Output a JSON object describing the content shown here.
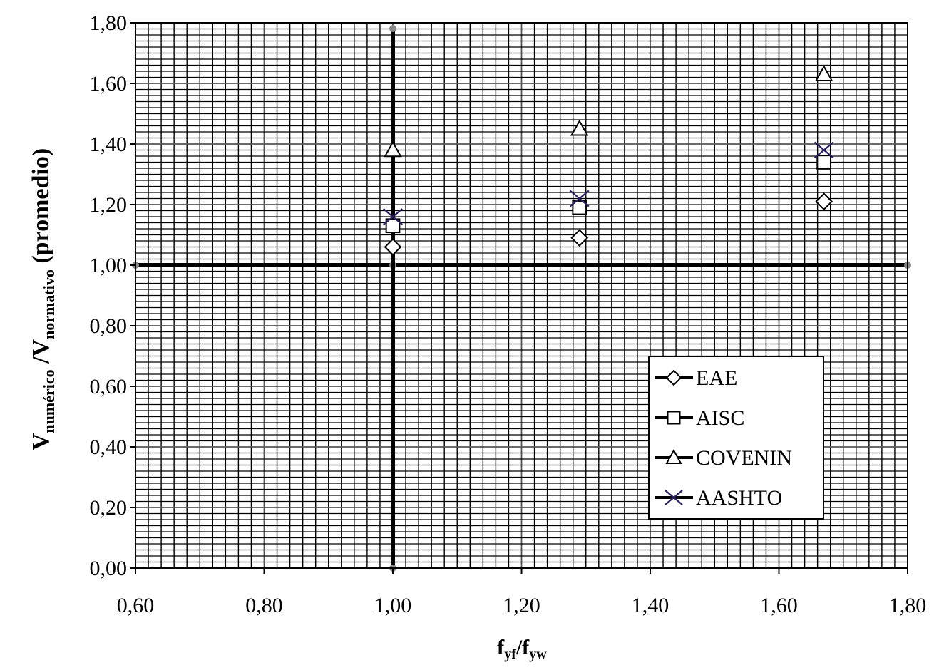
{
  "chart_data": {
    "type": "scatter",
    "xlabel_main": "f",
    "xlabel_sub1": "yf",
    "xlabel_sep": "/f",
    "xlabel_sub2": "yw",
    "ylabel_v1": "V",
    "ylabel_sub1": "numérico",
    "ylabel_sep": " /V",
    "ylabel_sub2": "normativo",
    "ylabel_tail": " (promedio)",
    "xlim": [
      0.6,
      1.8
    ],
    "ylim": [
      0.0,
      1.8
    ],
    "x_ticks": [
      0.6,
      0.8,
      1.0,
      1.2,
      1.4,
      1.6,
      1.8
    ],
    "x_tick_labels": [
      "0,60",
      "0,80",
      "1,00",
      "1,20",
      "1,40",
      "1,60",
      "1,80"
    ],
    "y_ticks": [
      0.0,
      0.2,
      0.4,
      0.6,
      0.8,
      1.0,
      1.2,
      1.4,
      1.6,
      1.8
    ],
    "y_tick_labels": [
      "0,00",
      "0,20",
      "0,40",
      "0,60",
      "0,80",
      "1,00",
      "1,20",
      "1,40",
      "1,60",
      "1,80"
    ],
    "grid": true,
    "legend_position": "bottom-right",
    "reference_lines": [
      {
        "orientation": "horizontal",
        "value": 1.0
      },
      {
        "orientation": "vertical",
        "value": 1.0
      }
    ],
    "series": [
      {
        "name": "EAE",
        "marker": "diamond",
        "color": "#000000",
        "x": [
          1.0,
          1.29,
          1.67
        ],
        "y": [
          1.06,
          1.09,
          1.21
        ]
      },
      {
        "name": "AISC",
        "marker": "square",
        "color": "#000000",
        "x": [
          1.0,
          1.29,
          1.67
        ],
        "y": [
          1.13,
          1.19,
          1.34
        ]
      },
      {
        "name": "COVENIN",
        "marker": "triangle",
        "color": "#000000",
        "x": [
          1.0,
          1.29,
          1.67
        ],
        "y": [
          1.38,
          1.45,
          1.63
        ]
      },
      {
        "name": "AASHTO",
        "marker": "x",
        "color": "#2a2060",
        "x": [
          1.0,
          1.29,
          1.67
        ],
        "y": [
          1.16,
          1.22,
          1.38
        ]
      }
    ]
  }
}
